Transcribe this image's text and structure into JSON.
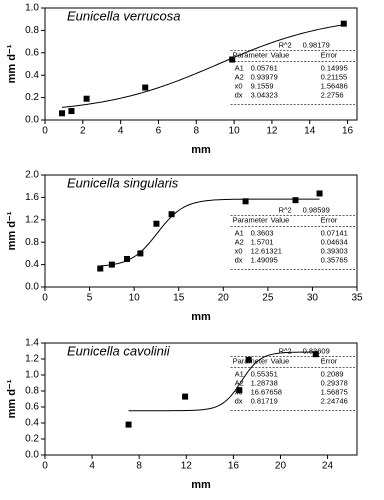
{
  "chart_data": [
    {
      "type": "scatter",
      "title": "Eunicella verrucosa",
      "xlabel": "mm",
      "ylabel": "mm d⁻¹",
      "x": [
        0.9,
        1.4,
        2.2,
        5.3,
        9.9,
        15.8
      ],
      "values": [
        0.06,
        0.08,
        0.19,
        0.29,
        0.54,
        0.86
      ],
      "color": "#000000",
      "xlim": [
        0,
        16.5
      ],
      "xticks": [
        0,
        2,
        4,
        6,
        8,
        10,
        12,
        14,
        16
      ],
      "ylim": [
        0,
        1.0
      ],
      "yticks": [
        {
          "value": 0,
          "label": "0.0"
        },
        {
          "value": 0.2,
          "label": "0.2"
        },
        {
          "value": 0.4,
          "label": "0.4"
        },
        {
          "value": 0.6,
          "label": "0.6"
        },
        {
          "value": 0.8,
          "label": "0.8"
        },
        {
          "value": 1.0,
          "label": "1.0"
        }
      ],
      "fit": {
        "r2_label": "R^2",
        "r2": 0.98179,
        "headers": [
          "Parameter",
          "Value",
          "Error"
        ],
        "params": [
          {
            "name": "A1",
            "value": 0.05761,
            "error": 0.14995
          },
          {
            "name": "A2",
            "value": 0.93979,
            "error": 0.21155
          },
          {
            "name": "x0",
            "value": 9.1559,
            "error": 1.56486
          },
          {
            "name": "dx",
            "value": 3.04323,
            "error": 2.2756
          }
        ]
      }
    },
    {
      "type": "scatter",
      "title": "Eunicella singularis",
      "xlabel": "mm",
      "ylabel": "mm d⁻¹",
      "x": [
        6.2,
        7.5,
        9.2,
        10.7,
        12.5,
        14.2,
        22.5,
        28.1,
        30.8
      ],
      "values": [
        0.33,
        0.4,
        0.5,
        0.6,
        1.13,
        1.3,
        1.53,
        1.55,
        1.67
      ],
      "color": "#000000",
      "xlim": [
        0,
        35
      ],
      "xticks": [
        0,
        5,
        10,
        15,
        20,
        25,
        30,
        35
      ],
      "ylim": [
        0,
        2.0
      ],
      "yticks": [
        {
          "value": 0,
          "label": "0.0"
        },
        {
          "value": 0.4,
          "label": "0.4"
        },
        {
          "value": 0.8,
          "label": "0.8"
        },
        {
          "value": 1.2,
          "label": "1.2"
        },
        {
          "value": 1.6,
          "label": "1.6"
        },
        {
          "value": 2.0,
          "label": "2.0"
        }
      ],
      "fit": {
        "r2_label": "R^2",
        "r2": 0.98599,
        "headers": [
          "Parameter",
          "Value",
          "Error"
        ],
        "params": [
          {
            "name": "A1",
            "value": 0.3603,
            "error": 0.07141
          },
          {
            "name": "A2",
            "value": 1.5701,
            "error": 0.04634
          },
          {
            "name": "x0",
            "value": 12.61321,
            "error": 0.39303
          },
          {
            "name": "dx",
            "value": 1.49095,
            "error": 0.35765
          }
        ]
      }
    },
    {
      "type": "scatter",
      "title": "Eunicella cavolinii",
      "xlabel": "mm",
      "ylabel": "mm d⁻¹",
      "x": [
        7.1,
        11.9,
        16.5,
        17.3,
        23.0
      ],
      "values": [
        0.38,
        0.73,
        0.81,
        1.19,
        1.26
      ],
      "color": "#000000",
      "xlim": [
        0,
        26.5
      ],
      "xticks": [
        0,
        4,
        8,
        12,
        16,
        20,
        24
      ],
      "ylim": [
        0,
        1.4
      ],
      "yticks": [
        {
          "value": 0,
          "label": "0.0"
        },
        {
          "value": 0.2,
          "label": "0.2"
        },
        {
          "value": 0.4,
          "label": "0.4"
        },
        {
          "value": 0.6,
          "label": "0.6"
        },
        {
          "value": 0.8,
          "label": "0.8"
        },
        {
          "value": 1.0,
          "label": "1.0"
        },
        {
          "value": 1.2,
          "label": "1.2"
        },
        {
          "value": 1.4,
          "label": "1.4"
        }
      ],
      "fit": {
        "r2_label": "R^2",
        "r2": 0.83609,
        "headers": [
          "Parameter",
          "Value",
          "Error"
        ],
        "params": [
          {
            "name": "A1",
            "value": 0.55351,
            "error": 0.2089
          },
          {
            "name": "A2",
            "value": 1.28738,
            "error": 0.29378
          },
          {
            "name": "x0",
            "value": 16.67658,
            "error": 1.56875
          },
          {
            "name": "dx",
            "value": 0.81719,
            "error": 2.24746
          }
        ]
      }
    }
  ]
}
